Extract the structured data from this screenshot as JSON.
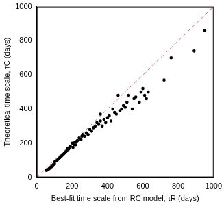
{
  "chart_data": {
    "type": "scatter",
    "x_label": "Best-fit time scale from RC model, τR (days)",
    "y_label": "Theoretical time scale, τC (days)",
    "xlim": [
      0,
      1000
    ],
    "ylim": [
      0,
      1000
    ],
    "xticks": [
      0,
      200,
      400,
      600,
      800,
      1000
    ],
    "yticks": [
      0,
      200,
      400,
      600,
      800,
      1000
    ],
    "grid": false,
    "series": [
      {
        "marker": "circle",
        "color": "#000000",
        "x": [
          55,
          65,
          70,
          75,
          80,
          85,
          90,
          95,
          100,
          100,
          110,
          115,
          120,
          125,
          130,
          135,
          140,
          145,
          150,
          155,
          160,
          165,
          170,
          175,
          180,
          185,
          190,
          200,
          205,
          210,
          215,
          220,
          225,
          230,
          240,
          250,
          255,
          260,
          270,
          280,
          290,
          300,
          310,
          320,
          330,
          340,
          350,
          360,
          360,
          370,
          380,
          390,
          400,
          410,
          420,
          430,
          440,
          450,
          460,
          470,
          480,
          490,
          500,
          510,
          520,
          540,
          550,
          560,
          580,
          590,
          600,
          610,
          620,
          630,
          720,
          760,
          890,
          950
        ],
        "values": [
          40,
          45,
          50,
          55,
          60,
          62,
          70,
          75,
          80,
          90,
          95,
          100,
          105,
          110,
          115,
          120,
          125,
          130,
          135,
          140,
          145,
          150,
          155,
          170,
          165,
          175,
          180,
          200,
          175,
          190,
          205,
          190,
          210,
          215,
          230,
          220,
          240,
          250,
          240,
          260,
          250,
          280,
          270,
          290,
          300,
          320,
          310,
          330,
          370,
          300,
          340,
          320,
          350,
          360,
          330,
          400,
          380,
          370,
          480,
          390,
          400,
          420,
          410,
          440,
          480,
          400,
          460,
          470,
          440,
          500,
          520,
          480,
          460,
          500,
          570,
          700,
          740,
          860
        ]
      },
      {
        "type": "line",
        "line_style": "dashed",
        "color": "#e07070",
        "x": [
          0,
          1000
        ],
        "values": [
          0,
          1000
        ]
      }
    ]
  }
}
